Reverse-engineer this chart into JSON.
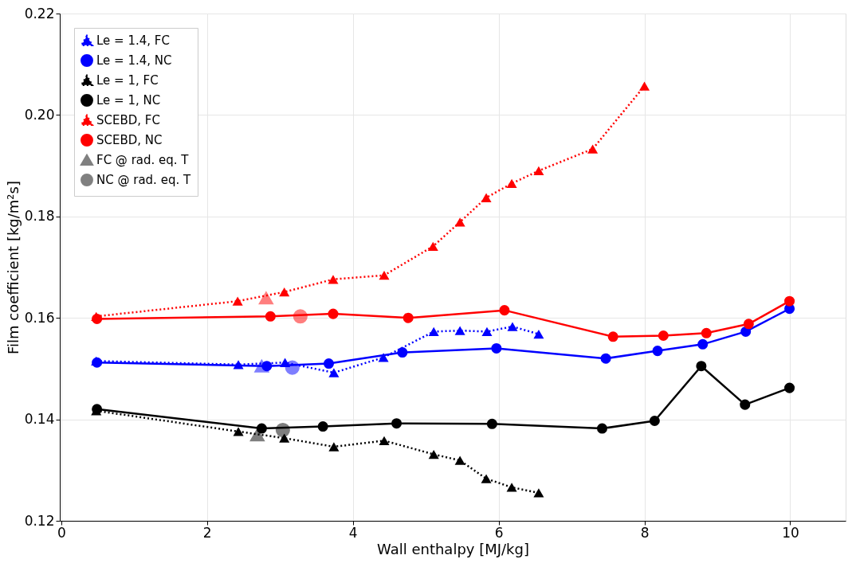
{
  "chart_data": {
    "type": "line",
    "xlabel": "Wall enthalpy [MJ/kg]",
    "ylabel": "Film coefficient [kg/m²s]",
    "xlim": [
      -0.02,
      10.76
    ],
    "ylim": [
      0.12,
      0.22
    ],
    "xticks": [
      0,
      2,
      4,
      6,
      8,
      10
    ],
    "yticks": [
      {
        "value": 0.12,
        "label": "0.12"
      },
      {
        "value": 0.14,
        "label": "0.14"
      },
      {
        "value": 0.16,
        "label": "0.16"
      },
      {
        "value": 0.18,
        "label": "0.18"
      },
      {
        "value": 0.2,
        "label": "0.20"
      },
      {
        "value": 0.22,
        "label": "0.22"
      }
    ],
    "grid": true,
    "legend": "top left",
    "series": [
      {
        "name": "Le = 1.4, FC",
        "type": "line",
        "color": "#0000ff",
        "marker": "triangle",
        "line_style": "dotted",
        "x": [
          0.48,
          2.43,
          3.07,
          3.74,
          4.42,
          5.11,
          5.47,
          5.84,
          6.19,
          6.55
        ],
        "values": [
          0.1515,
          0.1508,
          0.1512,
          0.1492,
          0.1522,
          0.1573,
          0.1575,
          0.1573,
          0.1583,
          0.1568
        ]
      },
      {
        "name": "Le = 1.4, NC",
        "type": "line",
        "color": "#0000ff",
        "marker": "circle",
        "line_style": "solid",
        "x": [
          0.49,
          2.82,
          3.67,
          4.68,
          5.97,
          7.47,
          8.18,
          8.8,
          9.39,
          9.99
        ],
        "values": [
          0.1512,
          0.1505,
          0.151,
          0.1532,
          0.154,
          0.152,
          0.1535,
          0.1548,
          0.1573,
          0.1618
        ]
      },
      {
        "name": "Le = 1, FC",
        "type": "line",
        "color": "#000000",
        "marker": "triangle",
        "line_style": "dotted",
        "x": [
          0.48,
          2.43,
          3.06,
          3.74,
          4.43,
          5.11,
          5.47,
          5.83,
          6.18,
          6.55
        ],
        "values": [
          0.1417,
          0.1376,
          0.1363,
          0.1346,
          0.1358,
          0.1331,
          0.1319,
          0.1283,
          0.1266,
          0.1255
        ]
      },
      {
        "name": "Le = 1, NC",
        "type": "line",
        "color": "#000000",
        "marker": "circle",
        "line_style": "solid",
        "x": [
          0.49,
          2.75,
          3.59,
          4.6,
          5.91,
          7.42,
          8.14,
          8.78,
          9.38,
          9.99
        ],
        "values": [
          0.142,
          0.1382,
          0.1386,
          0.1392,
          0.1391,
          0.1382,
          0.1397,
          0.1505,
          0.1429,
          0.1462
        ]
      },
      {
        "name": "SCEBD, FC",
        "type": "line",
        "color": "#ff0000",
        "marker": "triangle",
        "line_style": "dotted",
        "x": [
          0.48,
          2.42,
          3.06,
          3.73,
          4.43,
          5.1,
          5.47,
          5.83,
          6.18,
          6.55,
          7.29,
          8.0
        ],
        "values": [
          0.1603,
          0.1633,
          0.1651,
          0.1676,
          0.1684,
          0.1741,
          0.1789,
          0.1837,
          0.1865,
          0.189,
          0.1933,
          0.2057
        ]
      },
      {
        "name": "SCEBD, NC",
        "type": "line",
        "color": "#ff0000",
        "marker": "circle",
        "line_style": "solid",
        "x": [
          0.49,
          2.87,
          3.73,
          4.76,
          6.08,
          7.57,
          8.26,
          8.85,
          9.43,
          9.99
        ],
        "values": [
          0.1598,
          0.1603,
          0.1608,
          0.16,
          0.1615,
          0.1563,
          0.1565,
          0.157,
          0.1588,
          0.1633
        ]
      },
      {
        "name": "FC @ rad. eq. T",
        "type": "scatter",
        "color": "#808080",
        "marker": "triangle",
        "x": [
          2.81,
          2.75,
          2.69
        ],
        "values": [
          0.1639,
          0.1505,
          0.1369
        ],
        "colors": [
          "#ff0000",
          "#0000ff",
          "#000000"
        ]
      },
      {
        "name": "NC @ rad. eq. T",
        "type": "scatter",
        "color": "#808080",
        "marker": "circle",
        "x": [
          3.28,
          3.17,
          3.04
        ],
        "values": [
          0.1603,
          0.1502,
          0.1379
        ],
        "colors": [
          "#ff0000",
          "#0000ff",
          "#000000"
        ]
      }
    ]
  }
}
